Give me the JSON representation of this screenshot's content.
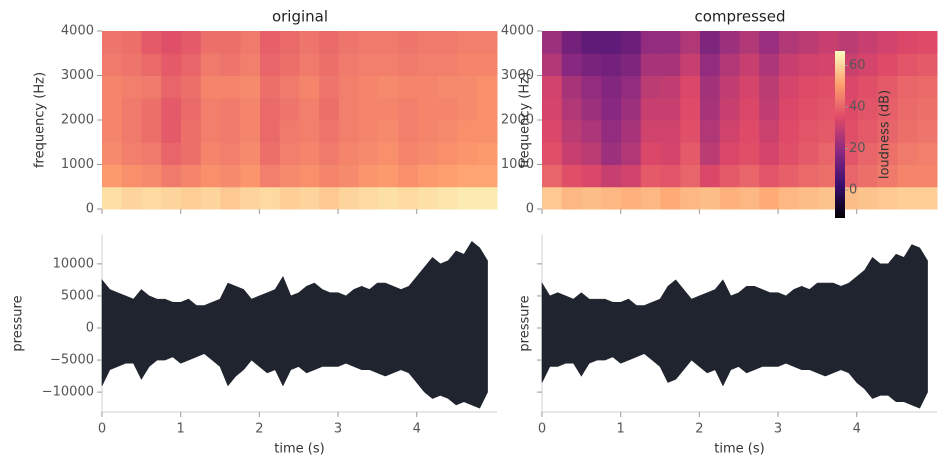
{
  "chart_data": [
    {
      "type": "heatmap",
      "title": "original",
      "ylabel": "frequency (Hz)",
      "xlim": [
        0,
        5.02
      ],
      "ylim": [
        0,
        4000
      ],
      "yticks": [
        0,
        1000,
        2000,
        3000,
        4000
      ],
      "zlim": [
        -13.5,
        67
      ],
      "colormap": [
        "#000004",
        "#3b0f70",
        "#8c2981",
        "#de4968",
        "#fe9f6d",
        "#fcfdbf"
      ],
      "z": [
        [
          62,
          60,
          61,
          60,
          59,
          60,
          58,
          60,
          61,
          59,
          60,
          58,
          60,
          61,
          62,
          61,
          62,
          63,
          64,
          64
        ],
        [
          50,
          48,
          47,
          44,
          46,
          48,
          47,
          49,
          45,
          47,
          48,
          46,
          47,
          49,
          50,
          48,
          50,
          51,
          52,
          52
        ],
        [
          47,
          45,
          44,
          40,
          42,
          46,
          45,
          47,
          42,
          45,
          46,
          44,
          46,
          47,
          48,
          46,
          47,
          48,
          49,
          50
        ],
        [
          46,
          44,
          42,
          38,
          42,
          45,
          44,
          46,
          41,
          44,
          45,
          43,
          45,
          46,
          47,
          45,
          46,
          47,
          48,
          48
        ],
        [
          46,
          44,
          42,
          38,
          41,
          45,
          44,
          46,
          41,
          43,
          45,
          42,
          45,
          46,
          46,
          45,
          46,
          46,
          47,
          48
        ],
        [
          46,
          45,
          44,
          40,
          42,
          46,
          46,
          47,
          42,
          44,
          46,
          43,
          45,
          46,
          47,
          46,
          46,
          47,
          47,
          48
        ],
        [
          44,
          43,
          41,
          38,
          40,
          44,
          43,
          45,
          40,
          42,
          44,
          42,
          44,
          45,
          45,
          44,
          45,
          45,
          46,
          46
        ],
        [
          43,
          42,
          38,
          36,
          38,
          42,
          42,
          44,
          39,
          41,
          43,
          41,
          43,
          44,
          44,
          43,
          44,
          44,
          45,
          45
        ]
      ]
    },
    {
      "type": "heatmap",
      "title": "compressed",
      "ylabel": "frequency (Hz)",
      "xlim": [
        0,
        5.02
      ],
      "ylim": [
        0,
        4000
      ],
      "yticks": [
        0,
        1000,
        2000,
        3000,
        4000
      ],
      "zlim": [
        -13.5,
        67
      ],
      "colormap": [
        "#000004",
        "#3b0f70",
        "#8c2981",
        "#de4968",
        "#fe9f6d",
        "#fcfdbf"
      ],
      "colorbar": {
        "label": "loudness (dB)",
        "ticks": [
          0,
          20,
          40,
          60
        ]
      },
      "z": [
        [
          58,
          55,
          56,
          55,
          54,
          55,
          53,
          55,
          56,
          54,
          55,
          53,
          55,
          56,
          57,
          56,
          57,
          58,
          59,
          59
        ],
        [
          40,
          36,
          34,
          30,
          32,
          38,
          37,
          40,
          34,
          38,
          40,
          37,
          39,
          41,
          42,
          40,
          42,
          44,
          46,
          46
        ],
        [
          36,
          30,
          28,
          22,
          26,
          34,
          33,
          38,
          28,
          34,
          36,
          33,
          36,
          38,
          40,
          37,
          40,
          42,
          44,
          45
        ],
        [
          34,
          28,
          25,
          20,
          24,
          32,
          32,
          36,
          26,
          32,
          35,
          31,
          35,
          37,
          38,
          36,
          38,
          40,
          42,
          43
        ],
        [
          33,
          26,
          22,
          18,
          22,
          30,
          30,
          35,
          24,
          30,
          34,
          29,
          34,
          36,
          37,
          35,
          37,
          39,
          41,
          42
        ],
        [
          32,
          24,
          20,
          17,
          20,
          28,
          29,
          34,
          23,
          29,
          33,
          28,
          33,
          35,
          36,
          34,
          36,
          38,
          40,
          41
        ],
        [
          26,
          18,
          15,
          14,
          16,
          24,
          24,
          30,
          20,
          26,
          30,
          25,
          30,
          32,
          33,
          31,
          33,
          35,
          37,
          38
        ],
        [
          22,
          14,
          10,
          10,
          12,
          20,
          20,
          26,
          16,
          22,
          26,
          21,
          26,
          28,
          30,
          28,
          30,
          32,
          34,
          35
        ]
      ]
    },
    {
      "type": "envelope",
      "xlabel": "time (s)",
      "ylabel": "pressure",
      "color": "#20242f",
      "xlim": [
        0,
        5.02
      ],
      "xticks": [
        0,
        1,
        2,
        3,
        4
      ],
      "ylim": [
        -13100,
        14500
      ],
      "yticks": [
        {
          "value": -10000,
          "label": "−10000"
        },
        {
          "value": -5000,
          "label": "−5000"
        },
        0,
        5000,
        10000
      ],
      "x": [
        0,
        0.1,
        0.2,
        0.3,
        0.4,
        0.5,
        0.6,
        0.7,
        0.8,
        0.9,
        1,
        1.1,
        1.2,
        1.3,
        1.4,
        1.5,
        1.6,
        1.7,
        1.8,
        1.9,
        2,
        2.1,
        2.2,
        2.3,
        2.4,
        2.5,
        2.6,
        2.7,
        2.8,
        2.9,
        3,
        3.1,
        3.2,
        3.3,
        3.4,
        3.5,
        3.6,
        3.7,
        3.8,
        3.9,
        4,
        4.1,
        4.2,
        4.3,
        4.4,
        4.5,
        4.6,
        4.7,
        4.8,
        4.9
      ],
      "upper": [
        7500,
        6000,
        5500,
        5000,
        4500,
        6000,
        5000,
        4500,
        4500,
        4000,
        4000,
        4500,
        3500,
        3500,
        4000,
        4500,
        7000,
        6500,
        6000,
        4500,
        5000,
        5500,
        6000,
        8000,
        5000,
        5500,
        6500,
        7000,
        6000,
        5500,
        5500,
        5000,
        6000,
        6500,
        6000,
        7000,
        7000,
        6500,
        6000,
        6500,
        8000,
        9500,
        11000,
        10000,
        10500,
        12000,
        11500,
        13500,
        12500,
        10500
      ],
      "lower": [
        -9000,
        -6500,
        -6000,
        -5500,
        -5500,
        -8000,
        -6000,
        -5000,
        -5000,
        -4500,
        -5500,
        -5000,
        -4500,
        -4000,
        -5000,
        -6000,
        -9000,
        -7500,
        -6500,
        -5000,
        -6000,
        -7000,
        -6500,
        -9000,
        -6500,
        -6000,
        -7000,
        -6500,
        -6000,
        -6000,
        -6000,
        -5500,
        -6000,
        -6500,
        -6500,
        -7000,
        -7500,
        -7000,
        -6500,
        -7000,
        -8500,
        -10000,
        -11000,
        -10500,
        -11000,
        -12000,
        -11500,
        -12000,
        -12500,
        -10000
      ]
    },
    {
      "type": "envelope",
      "xlabel": "time (s)",
      "ylabel": "pressure",
      "color": "#20242f",
      "xlim": [
        0,
        5.02
      ],
      "xticks": [
        0,
        1,
        2,
        3,
        4
      ],
      "ylim": [
        -13100,
        14500
      ],
      "x": [
        0,
        0.1,
        0.2,
        0.3,
        0.4,
        0.5,
        0.6,
        0.7,
        0.8,
        0.9,
        1,
        1.1,
        1.2,
        1.3,
        1.4,
        1.5,
        1.6,
        1.7,
        1.8,
        1.9,
        2,
        2.1,
        2.2,
        2.3,
        2.4,
        2.5,
        2.6,
        2.7,
        2.8,
        2.9,
        3,
        3.1,
        3.2,
        3.3,
        3.4,
        3.5,
        3.6,
        3.7,
        3.8,
        3.9,
        4,
        4.1,
        4.2,
        4.3,
        4.4,
        4.5,
        4.6,
        4.7,
        4.8,
        4.9
      ],
      "upper": [
        7000,
        5000,
        5500,
        5000,
        4500,
        5500,
        4500,
        4500,
        4500,
        4000,
        4000,
        4500,
        3500,
        3500,
        4000,
        4500,
        6500,
        7500,
        6000,
        4500,
        5000,
        5500,
        6000,
        7500,
        5000,
        5500,
        6500,
        6500,
        6000,
        5500,
        5500,
        5000,
        6000,
        6500,
        6000,
        7000,
        7000,
        7000,
        6500,
        7000,
        8000,
        9000,
        11000,
        10000,
        10000,
        11500,
        11000,
        13000,
        12500,
        10500
      ],
      "lower": [
        -8500,
        -6000,
        -6000,
        -5500,
        -5500,
        -7500,
        -5500,
        -5000,
        -5000,
        -4500,
        -5500,
        -5000,
        -4500,
        -4000,
        -5000,
        -6000,
        -8500,
        -8000,
        -6500,
        -5000,
        -6000,
        -7000,
        -6500,
        -9000,
        -6500,
        -6000,
        -7000,
        -6500,
        -6000,
        -6000,
        -6000,
        -5500,
        -6000,
        -6500,
        -6500,
        -7000,
        -7500,
        -7000,
        -6500,
        -7000,
        -8500,
        -9500,
        -11000,
        -10500,
        -10500,
        -11500,
        -11500,
        -12000,
        -12500,
        -10000
      ]
    }
  ]
}
